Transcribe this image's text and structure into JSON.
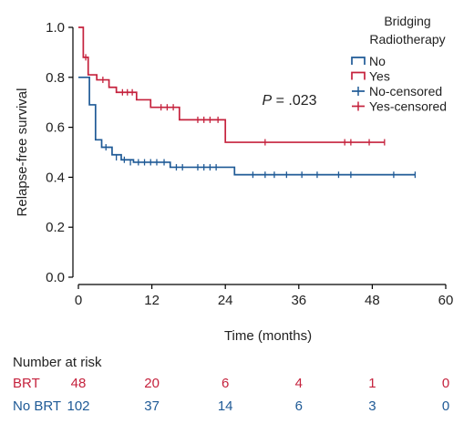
{
  "colors": {
    "no": "#1f5a96",
    "yes": "#c5223d",
    "axis": "#000000",
    "text": "#222222"
  },
  "chart_data": {
    "type": "line",
    "subtype": "kaplan-meier-step",
    "xlabel": "Time (months)",
    "ylabel": "Relapse-free survival",
    "xlim": [
      0,
      60
    ],
    "ylim": [
      0,
      1.0
    ],
    "xticks": [
      0,
      12,
      24,
      36,
      48,
      60
    ],
    "yticks": [
      0.0,
      0.2,
      0.4,
      0.6,
      0.8,
      1.0
    ],
    "xtick_labels": [
      "0",
      "12",
      "24",
      "36",
      "48",
      "60"
    ],
    "ytick_labels": [
      "0.0",
      "0.2",
      "0.4",
      "0.6",
      "0.8",
      "1.0"
    ],
    "grid": false,
    "annotation": {
      "italic": "P",
      "rest": " = .023",
      "x": 30,
      "y": 0.69
    },
    "legend": {
      "title_line1": "Bridging",
      "title_line2": "Radiotherapy",
      "placement": "top-right",
      "entries": [
        {
          "label": "No",
          "kind": "step",
          "series": "no"
        },
        {
          "label": "Yes",
          "kind": "step",
          "series": "yes"
        },
        {
          "label": "No-censored",
          "kind": "censor",
          "series": "no"
        },
        {
          "label": "Yes-censored",
          "kind": "censor",
          "series": "yes"
        }
      ]
    },
    "series": [
      {
        "key": "no",
        "name": "No",
        "steps": [
          [
            0,
            0.8
          ],
          [
            1.8,
            0.69
          ],
          [
            2.8,
            0.55
          ],
          [
            3.8,
            0.52
          ],
          [
            5.5,
            0.49
          ],
          [
            7.0,
            0.47
          ],
          [
            9.0,
            0.46
          ],
          [
            15.0,
            0.44
          ],
          [
            25.5,
            0.41
          ]
        ],
        "end": 55,
        "censored": [
          [
            4.5,
            0.52
          ],
          [
            6.2,
            0.48
          ],
          [
            7.5,
            0.47
          ],
          [
            8.5,
            0.46
          ],
          [
            9.8,
            0.46
          ],
          [
            10.8,
            0.46
          ],
          [
            11.8,
            0.46
          ],
          [
            12.8,
            0.46
          ],
          [
            14.0,
            0.46
          ],
          [
            16.0,
            0.44
          ],
          [
            17.0,
            0.44
          ],
          [
            19.5,
            0.44
          ],
          [
            20.5,
            0.44
          ],
          [
            21.5,
            0.44
          ],
          [
            22.5,
            0.44
          ],
          [
            28.5,
            0.41
          ],
          [
            30.5,
            0.41
          ],
          [
            32.0,
            0.41
          ],
          [
            34.0,
            0.41
          ],
          [
            36.5,
            0.41
          ],
          [
            39.0,
            0.41
          ],
          [
            42.5,
            0.41
          ],
          [
            44.5,
            0.41
          ],
          [
            51.5,
            0.41
          ],
          [
            55.0,
            0.41
          ]
        ]
      },
      {
        "key": "yes",
        "name": "Yes",
        "steps": [
          [
            0,
            1.0
          ],
          [
            0.8,
            0.88
          ],
          [
            1.6,
            0.81
          ],
          [
            3.0,
            0.79
          ],
          [
            5.0,
            0.76
          ],
          [
            6.2,
            0.74
          ],
          [
            9.5,
            0.71
          ],
          [
            11.8,
            0.68
          ],
          [
            16.5,
            0.63
          ],
          [
            24.0,
            0.54
          ]
        ],
        "end": 50,
        "censored": [
          [
            1.2,
            0.88
          ],
          [
            4.0,
            0.79
          ],
          [
            7.2,
            0.74
          ],
          [
            8.0,
            0.74
          ],
          [
            8.8,
            0.74
          ],
          [
            13.5,
            0.68
          ],
          [
            14.5,
            0.68
          ],
          [
            15.5,
            0.68
          ],
          [
            19.5,
            0.63
          ],
          [
            20.5,
            0.63
          ],
          [
            21.5,
            0.63
          ],
          [
            22.8,
            0.63
          ],
          [
            30.5,
            0.54
          ],
          [
            43.5,
            0.54
          ],
          [
            44.5,
            0.54
          ],
          [
            47.5,
            0.54
          ],
          [
            50.0,
            0.54
          ]
        ]
      }
    ],
    "risk_table": {
      "title": "Number at risk",
      "times": [
        0,
        12,
        24,
        36,
        48,
        60
      ],
      "rows": [
        {
          "key": "yes",
          "label": "BRT",
          "values": [
            "48",
            "20",
            "6",
            "4",
            "1",
            "0"
          ]
        },
        {
          "key": "no",
          "label": "No BRT",
          "values": [
            "102",
            "37",
            "14",
            "6",
            "3",
            "0"
          ]
        }
      ]
    }
  }
}
